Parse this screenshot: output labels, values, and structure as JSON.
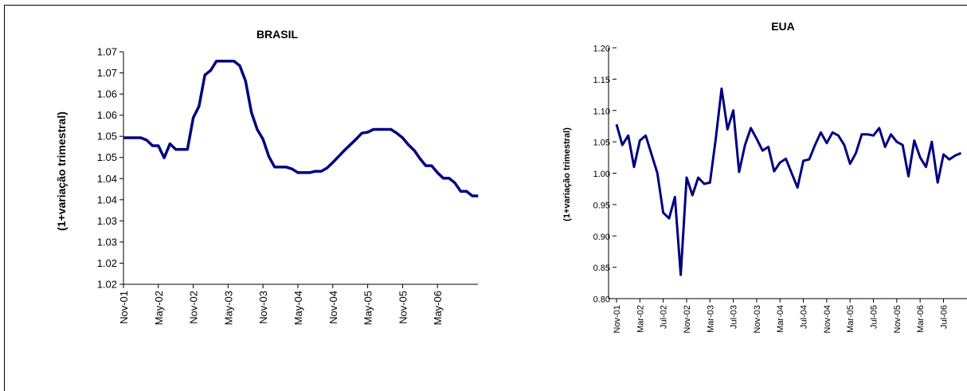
{
  "chart_data": [
    {
      "type": "line",
      "title": "BRASIL",
      "ylabel": "(1+variação trimestral)",
      "xlabel": "",
      "ylim": [
        1.02,
        1.07
      ],
      "ytick_labels": [
        "1.07",
        "1.07",
        "1.06",
        "1.06",
        "1.05",
        "1.05",
        "1.04",
        "1.04",
        "1.03",
        "1.03",
        "1.02",
        "1.02"
      ],
      "xtick_labels": [
        "Nov-01",
        "May-02",
        "Nov-02",
        "May-03",
        "Nov-03",
        "May-04",
        "Nov-04",
        "May-05",
        "Nov-05",
        "May-06"
      ],
      "grid": false,
      "line_color": "#000080",
      "series": [
        {
          "x": [
            "Nov-01",
            "Dec-01",
            "Jan-02",
            "Feb-02",
            "Mar-02",
            "Apr-02",
            "May-02",
            "Jun-02",
            "Jul-02",
            "Aug-02",
            "Sep-02",
            "Oct-02",
            "Nov-02",
            "Dec-02",
            "Jan-03",
            "Feb-03",
            "Mar-03",
            "Apr-03",
            "May-03",
            "Jun-03",
            "Jul-03",
            "Aug-03",
            "Sep-03",
            "Oct-03",
            "Nov-03",
            "Dec-03",
            "Jan-04",
            "Feb-04",
            "Mar-04",
            "Apr-04",
            "May-04",
            "Jun-04",
            "Jul-04",
            "Aug-04",
            "Sep-04",
            "Oct-04",
            "Nov-04",
            "Dec-04",
            "Jan-05",
            "Feb-05",
            "Mar-05",
            "Apr-05",
            "May-05",
            "Jun-05",
            "Jul-05",
            "Aug-05",
            "Sep-05",
            "Oct-05",
            "Nov-05",
            "Dec-05",
            "Jan-06",
            "Feb-06",
            "Mar-06",
            "Apr-06",
            "May-06",
            "Jun-06",
            "Jul-06",
            "Aug-06",
            "Sep-06",
            "Oct-06",
            "Nov-06",
            "Dec-06"
          ],
          "values": [
            1.0515,
            1.0515,
            1.0515,
            1.0515,
            1.051,
            1.0498,
            1.0498,
            1.0472,
            1.0502,
            1.049,
            1.049,
            1.049,
            1.0558,
            1.0583,
            1.065,
            1.066,
            1.068,
            1.068,
            1.068,
            1.068,
            1.067,
            1.0637,
            1.057,
            1.0533,
            1.0512,
            1.0475,
            1.0452,
            1.0452,
            1.0452,
            1.0448,
            1.044,
            1.044,
            1.044,
            1.0443,
            1.0443,
            1.045,
            1.0462,
            1.0475,
            1.0488,
            1.05,
            1.0512,
            1.0525,
            1.0527,
            1.0533,
            1.0533,
            1.0533,
            1.0533,
            1.0525,
            1.0515,
            1.05,
            1.0488,
            1.047,
            1.0455,
            1.0455,
            1.044,
            1.0428,
            1.0428,
            1.0418,
            1.04,
            1.04,
            1.039,
            1.039
          ]
        }
      ]
    },
    {
      "type": "line",
      "title": "EUA",
      "ylabel": "(1+variação trimestral)",
      "xlabel": "",
      "ylim": [
        0.8,
        1.2
      ],
      "ytick_labels": [
        "1.20",
        "1.15",
        "1.10",
        "1.05",
        "1.00",
        "0.95",
        "0.90",
        "0.85",
        "0.80"
      ],
      "xtick_labels": [
        "Nov-01",
        "Mar-02",
        "Jul-02",
        "Nov-02",
        "Mar-03",
        "Jul-03",
        "Nov-03",
        "Mar-04",
        "Jul-04",
        "Nov-04",
        "Mar-05",
        "Jul-05",
        "Nov-05",
        "Mar-06",
        "Jul-06"
      ],
      "grid": false,
      "line_color": "#000080",
      "series": [
        {
          "x": [
            "Nov-01",
            "Dec-01",
            "Jan-02",
            "Feb-02",
            "Mar-02",
            "Apr-02",
            "May-02",
            "Jun-02",
            "Jul-02",
            "Aug-02",
            "Sep-02",
            "Oct-02",
            "Nov-02",
            "Dec-02",
            "Jan-03",
            "Feb-03",
            "Mar-03",
            "Apr-03",
            "May-03",
            "Jun-03",
            "Jul-03",
            "Aug-03",
            "Sep-03",
            "Oct-03",
            "Nov-03",
            "Dec-03",
            "Jan-04",
            "Feb-04",
            "Mar-04",
            "Apr-04",
            "May-04",
            "Jun-04",
            "Jul-04",
            "Aug-04",
            "Sep-04",
            "Oct-04",
            "Nov-04",
            "Dec-04",
            "Jan-05",
            "Feb-05",
            "Mar-05",
            "Apr-05",
            "May-05",
            "Jun-05",
            "Jul-05",
            "Aug-05",
            "Sep-05",
            "Oct-05",
            "Nov-05",
            "Dec-05",
            "Jan-06",
            "Feb-06",
            "Mar-06",
            "Apr-06",
            "May-06",
            "Jun-06",
            "Jul-06",
            "Aug-06",
            "Sep-06",
            "Oct-06"
          ],
          "values": [
            1.078,
            1.045,
            1.06,
            1.01,
            1.052,
            1.06,
            1.03,
            1.0,
            0.937,
            0.928,
            0.962,
            0.838,
            0.993,
            0.965,
            0.993,
            0.983,
            0.985,
            1.055,
            1.135,
            1.07,
            1.1,
            1.002,
            1.045,
            1.072,
            1.055,
            1.036,
            1.042,
            1.003,
            1.017,
            1.023,
            1.0,
            0.977,
            1.02,
            1.022,
            1.045,
            1.065,
            1.048,
            1.065,
            1.06,
            1.045,
            1.015,
            1.032,
            1.062,
            1.062,
            1.06,
            1.072,
            1.042,
            1.062,
            1.05,
            1.045,
            0.995,
            1.052,
            1.025,
            1.01,
            1.05,
            0.985,
            1.03,
            1.022,
            1.028,
            1.032
          ]
        }
      ]
    }
  ]
}
